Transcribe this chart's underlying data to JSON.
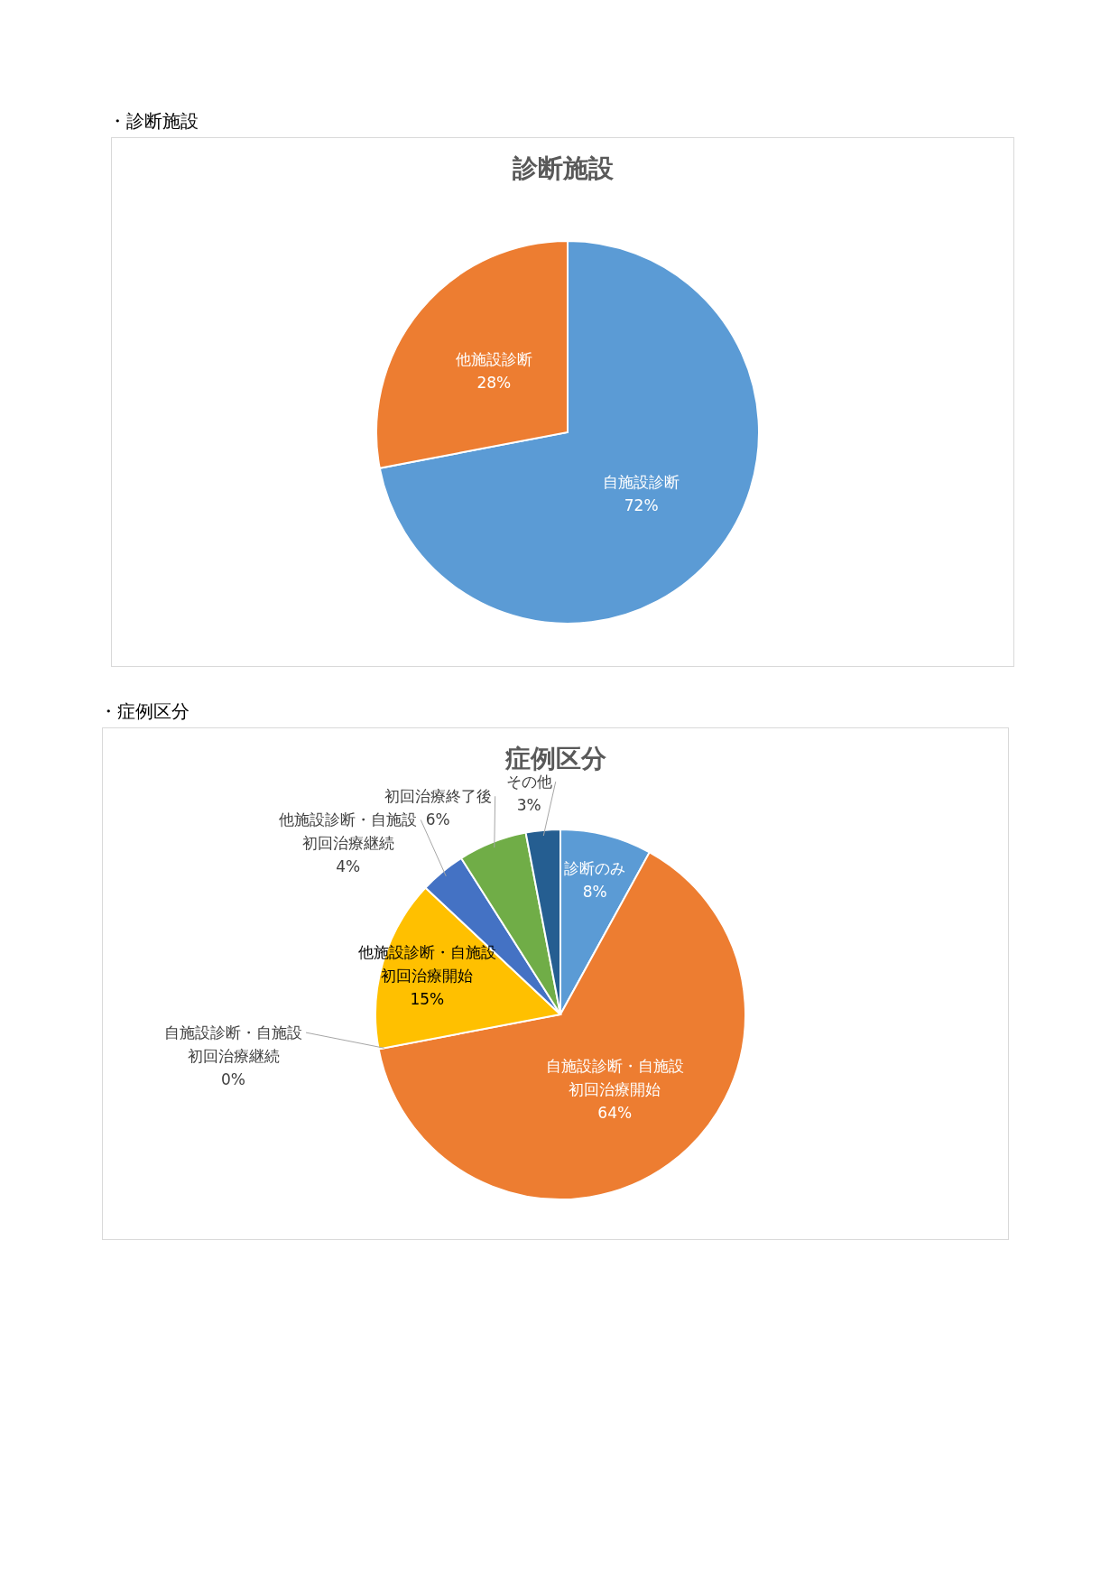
{
  "chart_data": [
    {
      "type": "pie",
      "title": "診断施設",
      "annotations": [
        "・診断施設"
      ],
      "categories": [
        "自施設診断",
        "他施設診断"
      ],
      "values": [
        72,
        28
      ],
      "colors": [
        "#5b9bd5",
        "#ed7d31"
      ],
      "data_labels": true,
      "value_labels": [
        "72%",
        "28%"
      ],
      "legend": false
    },
    {
      "type": "pie",
      "title": "症例区分",
      "annotations": [
        "・症例区分"
      ],
      "categories": [
        "診断のみ",
        "自施設診断・自施設初回治療開始",
        "自施設診断・自施設初回治療継続",
        "他施設診断・自施設初回治療開始",
        "他施設診断・自施設初回治療継続",
        "初回治療終了後",
        "その他"
      ],
      "values": [
        8,
        64,
        0,
        15,
        4,
        6,
        3
      ],
      "colors": [
        "#5b9bd5",
        "#ed7d31",
        "#a5a5a5",
        "#ffc000",
        "#4472c4",
        "#70ad47",
        "#255e91"
      ],
      "data_labels": true,
      "value_labels": [
        "8%",
        "64%",
        "0%",
        "15%",
        "4%",
        "6%",
        "3%"
      ],
      "legend": false
    }
  ]
}
